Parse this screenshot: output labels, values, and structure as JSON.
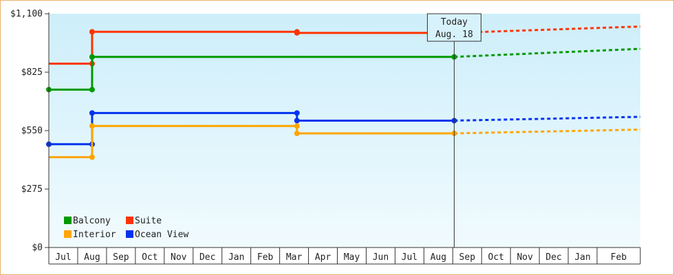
{
  "chart_data": {
    "type": "line",
    "title": "",
    "xlabel": "",
    "ylabel": "",
    "ylim": [
      0,
      1100
    ],
    "y_ticks": [
      {
        "value": 0,
        "label": "$0"
      },
      {
        "value": 275,
        "label": "$275"
      },
      {
        "value": 550,
        "label": "$550"
      },
      {
        "value": 825,
        "label": "$825"
      },
      {
        "value": 1100,
        "label": "$1,100"
      }
    ],
    "x_months": [
      "Jul",
      "Aug",
      "Sep",
      "Oct",
      "Nov",
      "Dec",
      "Jan",
      "Feb",
      "Mar",
      "Apr",
      "May",
      "Jun",
      "Jul",
      "Aug",
      "Sep",
      "Oct",
      "Nov",
      "Dec",
      "Jan",
      "Feb"
    ],
    "x_range": [
      -0.5,
      20.0
    ],
    "today": {
      "x": 13.55,
      "line1": "Today",
      "line2": "Aug. 18"
    },
    "grid": false,
    "legend_placement": "bottom-left",
    "background_gradient": [
      "#cdeefa",
      "#f1fbfe"
    ],
    "series": [
      {
        "name": "Suite",
        "color": "#ff3300",
        "points": [
          [
            -0.5,
            865
          ],
          [
            1.0,
            865
          ],
          [
            1.0,
            1015
          ],
          [
            8.1,
            1015
          ],
          [
            8.1,
            1010
          ],
          [
            13.55,
            1010
          ]
        ],
        "markers": [
          [
            1.0,
            865
          ],
          [
            1.0,
            1015
          ],
          [
            8.1,
            1015
          ],
          [
            8.1,
            1010
          ],
          [
            13.55,
            1010
          ]
        ],
        "forecast": [
          [
            13.55,
            1010
          ],
          [
            20.0,
            1040
          ]
        ]
      },
      {
        "name": "Balcony",
        "color": "#009900",
        "points": [
          [
            -0.5,
            743
          ],
          [
            1.0,
            743
          ],
          [
            1.0,
            897
          ],
          [
            13.55,
            897
          ]
        ],
        "markers": [
          [
            -0.5,
            743
          ],
          [
            1.0,
            743
          ],
          [
            1.0,
            897
          ],
          [
            13.55,
            897
          ]
        ],
        "forecast": [
          [
            13.55,
            897
          ],
          [
            20.0,
            935
          ]
        ]
      },
      {
        "name": "Ocean View",
        "color": "#0033ee",
        "points": [
          [
            -0.5,
            486
          ],
          [
            1.0,
            486
          ],
          [
            1.0,
            633
          ],
          [
            8.1,
            633
          ],
          [
            8.1,
            597
          ],
          [
            13.55,
            597
          ]
        ],
        "markers": [
          [
            -0.5,
            486
          ],
          [
            1.0,
            486
          ],
          [
            1.0,
            633
          ],
          [
            8.1,
            633
          ],
          [
            8.1,
            597
          ],
          [
            13.55,
            597
          ]
        ],
        "forecast": [
          [
            13.55,
            597
          ],
          [
            20.0,
            615
          ]
        ]
      },
      {
        "name": "Interior",
        "color": "#ffa500",
        "points": [
          [
            -0.5,
            425
          ],
          [
            1.0,
            425
          ],
          [
            1.0,
            572
          ],
          [
            8.1,
            572
          ],
          [
            8.1,
            537
          ],
          [
            13.55,
            537
          ]
        ],
        "markers": [
          [
            1.0,
            425
          ],
          [
            1.0,
            572
          ],
          [
            8.1,
            572
          ],
          [
            8.1,
            537
          ],
          [
            13.55,
            537
          ]
        ],
        "forecast": [
          [
            13.55,
            537
          ],
          [
            20.0,
            555
          ]
        ]
      }
    ],
    "legend": [
      {
        "name": "Balcony",
        "color": "#009900"
      },
      {
        "name": "Suite",
        "color": "#ff3300"
      },
      {
        "name": "Interior",
        "color": "#ffa500"
      },
      {
        "name": "Ocean View",
        "color": "#0033ee"
      }
    ]
  }
}
